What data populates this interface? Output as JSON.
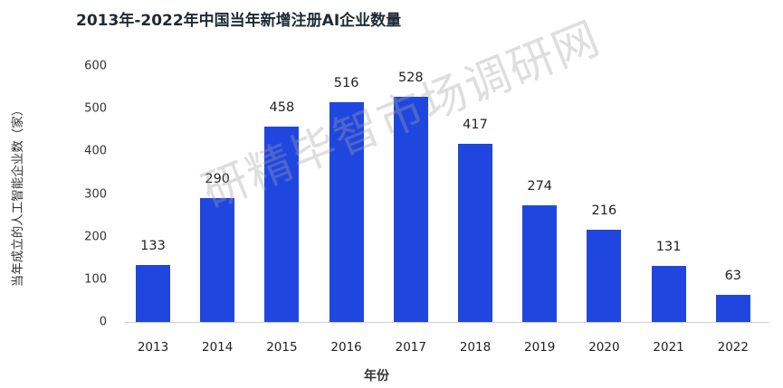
{
  "chart_data": {
    "type": "bar",
    "title": "2013年-2022年中国当年新增注册AI企业数量",
    "xlabel": "年份",
    "ylabel": "当年成立的人工智能企业数（家）",
    "categories": [
      "2013",
      "2014",
      "2015",
      "2016",
      "2017",
      "2018",
      "2019",
      "2020",
      "2021",
      "2022"
    ],
    "values": [
      133,
      290,
      458,
      516,
      528,
      417,
      274,
      216,
      131,
      63
    ],
    "ylim": [
      0,
      600
    ],
    "yticks": [
      0,
      100,
      200,
      300,
      400,
      500,
      600
    ],
    "grid": false,
    "legend": null,
    "bar_color": "#1f47e0",
    "data_labels": true
  },
  "watermark": "研精毕智市场调研网"
}
